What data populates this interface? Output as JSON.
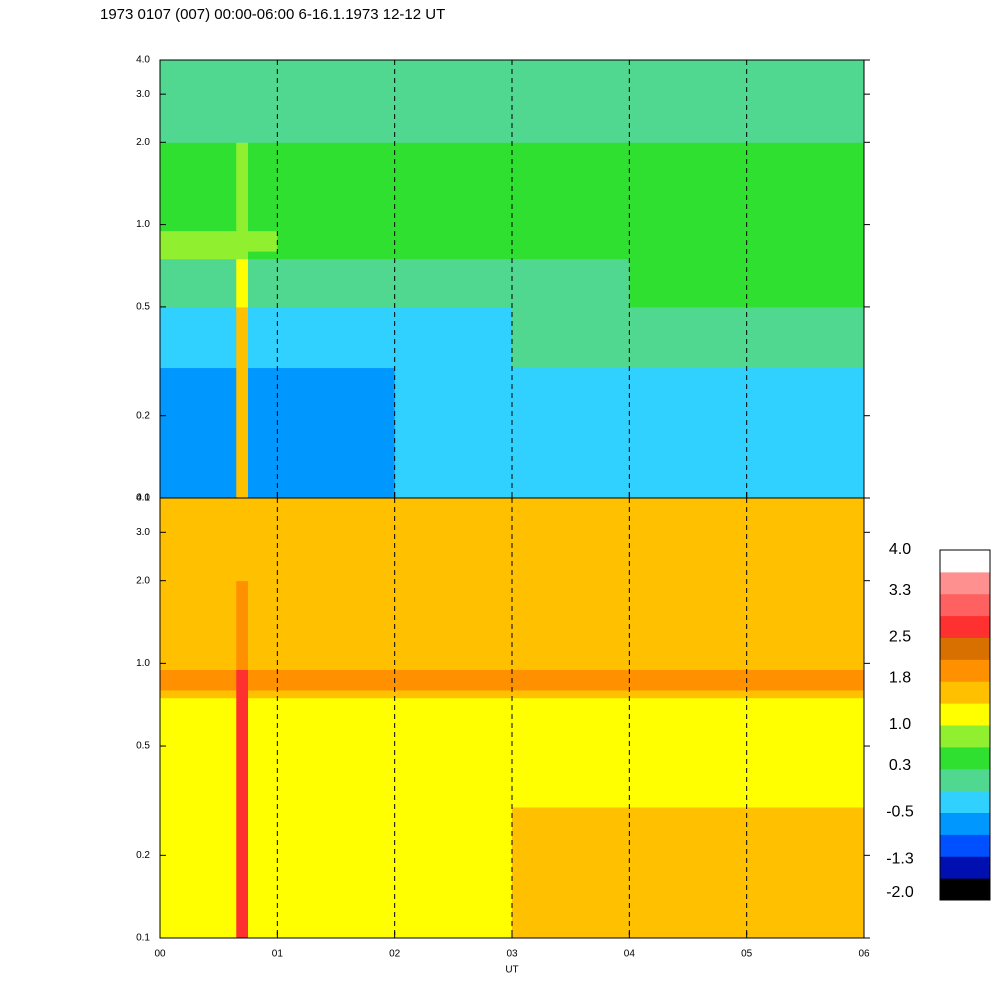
{
  "chart_data": [
    {
      "type": "heatmap",
      "title": "1973 0107 (007) 00:00-06:00 6-16.1.1973  12-12 UT",
      "log_y": true,
      "grid": true,
      "xlim": [
        0,
        6
      ],
      "xticks": [
        0,
        1,
        2,
        3,
        4,
        5,
        6
      ],
      "ylim": [
        0.1,
        4.0
      ],
      "yticks": [
        0.1,
        0.2,
        0.5,
        {
          "value": 1.0,
          "label": "1.0"
        },
        {
          "value": 2.0,
          "label": "2.0"
        },
        {
          "value": 3.0,
          "label": "3.0"
        },
        {
          "value": 4.0,
          "label": "4.0"
        }
      ],
      "x_edges": [
        0,
        0.65,
        0.75,
        1,
        2,
        3,
        4,
        5,
        6
      ],
      "y_edges": [
        0.1,
        0.3,
        0.5,
        0.75,
        0.8,
        0.95,
        2.0,
        4.0
      ],
      "z": [
        [
          -0.6,
          1.6,
          -0.6,
          -0.6,
          -0.5,
          -0.4,
          -0.2,
          -0.3
        ],
        [
          -0.4,
          1.6,
          -0.3,
          -0.2,
          -0.2,
          -0.1,
          0.0,
          -0.1
        ],
        [
          0.0,
          1.2,
          0.1,
          0.2,
          0.2,
          0.2,
          0.3,
          0.3
        ],
        [
          0.7,
          0.8,
          0.6,
          0.6,
          0.6,
          0.5,
          0.5,
          0.5
        ],
        [
          0.8,
          0.9,
          0.7,
          0.6,
          0.6,
          0.6,
          0.6,
          0.6
        ],
        [
          0.6,
          0.7,
          0.5,
          0.4,
          0.4,
          0.4,
          0.4,
          0.4
        ],
        [
          0.2,
          0.2,
          0.0,
          0.0,
          0.0,
          -0.1,
          0.0,
          0.1
        ]
      ]
    },
    {
      "type": "heatmap",
      "xlabel": "UT",
      "log_y": true,
      "grid": true,
      "xlim": [
        0,
        6
      ],
      "xticks": [
        {
          "value": 0,
          "label": "00"
        },
        {
          "value": 1,
          "label": "01"
        },
        {
          "value": 2,
          "label": "02"
        },
        {
          "value": 3,
          "label": "03"
        },
        {
          "value": 4,
          "label": "04"
        },
        {
          "value": 5,
          "label": "05"
        },
        {
          "value": 6,
          "label": "06"
        }
      ],
      "ylim": [
        0.1,
        4.0
      ],
      "yticks": [
        0.1,
        0.2,
        0.5,
        {
          "value": 1.0,
          "label": "1.0"
        },
        {
          "value": 2.0,
          "label": "2.0"
        },
        {
          "value": 3.0,
          "label": "3.0"
        },
        {
          "value": 4.0,
          "label": "4.0"
        }
      ],
      "x_edges": [
        0,
        0.65,
        0.75,
        1,
        2,
        3,
        4,
        5,
        6
      ],
      "y_edges": [
        0.1,
        0.3,
        0.5,
        0.75,
        0.8,
        0.95,
        2.0,
        4.0
      ],
      "z": [
        [
          1.0,
          2.6,
          1.0,
          1.0,
          1.1,
          1.5,
          1.6,
          1.6
        ],
        [
          1.0,
          2.6,
          1.0,
          1.0,
          1.0,
          1.1,
          1.1,
          1.2
        ],
        [
          1.2,
          2.6,
          1.2,
          1.2,
          1.2,
          1.2,
          1.2,
          1.2
        ],
        [
          1.6,
          2.6,
          1.6,
          1.6,
          1.6,
          1.6,
          1.6,
          1.6
        ],
        [
          2.1,
          2.6,
          2.1,
          2.1,
          2.1,
          2.1,
          2.1,
          2.1
        ],
        [
          1.4,
          1.8,
          1.5,
          1.5,
          1.6,
          1.6,
          1.6,
          1.6
        ],
        [
          1.5,
          1.5,
          1.6,
          1.6,
          1.7,
          1.7,
          1.7,
          1.6
        ]
      ],
      "colorbar": {
        "zlim": [
          -2.0,
          4.0
        ],
        "colors": [
          "#000000",
          "#0010b0",
          "#0050ff",
          "#0098ff",
          "#30d0ff",
          "#50d890",
          "#30e030",
          "#90f030",
          "#ffff00",
          "#ffc000",
          "#ff9000",
          "#d87000",
          "#ff3030",
          "#ff6060",
          "#ff9090",
          "#ffffff"
        ],
        "ticks": [
          {
            "value": 4.0,
            "label": "4.0"
          },
          3.3,
          2.5,
          1.8,
          {
            "value": 1.0,
            "label": "1.0"
          },
          0.3,
          -0.5,
          -1.3,
          {
            "value": -2.0,
            "label": "-2.0"
          }
        ]
      }
    }
  ]
}
